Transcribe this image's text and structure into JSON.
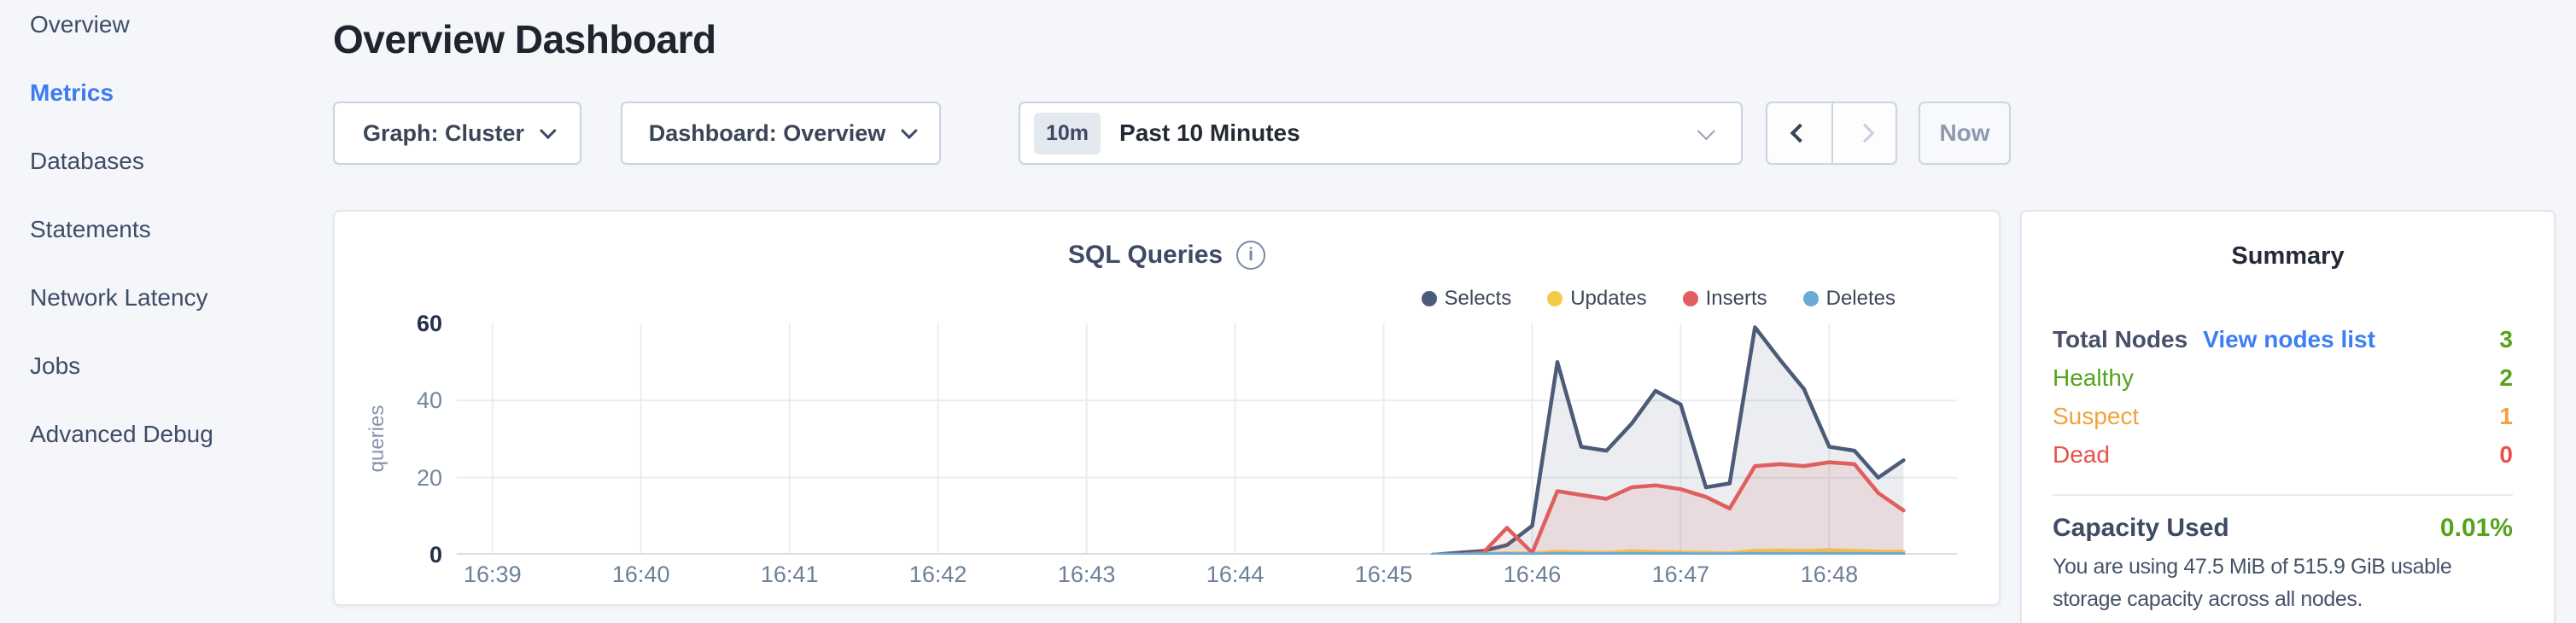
{
  "sidebar": {
    "items": [
      {
        "label": "Overview",
        "active": false
      },
      {
        "label": "Metrics",
        "active": true
      },
      {
        "label": "Databases",
        "active": false
      },
      {
        "label": "Statements",
        "active": false
      },
      {
        "label": "Network Latency",
        "active": false
      },
      {
        "label": "Jobs",
        "active": false
      },
      {
        "label": "Advanced Debug",
        "active": false
      }
    ]
  },
  "header": {
    "title": "Overview Dashboard"
  },
  "toolbar": {
    "graph_dropdown": {
      "label": "Graph: Cluster"
    },
    "dashboard_dropdown": {
      "label": "Dashboard: Overview"
    },
    "time_selector": {
      "badge": "10m",
      "label": "Past 10 Minutes"
    },
    "now_button": "Now"
  },
  "icons": {
    "info": "i"
  },
  "chart_data": {
    "type": "line",
    "title": "SQL Queries",
    "ylabel": "queries",
    "ylim": [
      0,
      60
    ],
    "y_ticks": [
      0,
      20,
      40,
      60
    ],
    "x_ticks": [
      "16:39",
      "16:40",
      "16:41",
      "16:42",
      "16:43",
      "16:44",
      "16:45",
      "16:46",
      "16:47",
      "16:48"
    ],
    "x_range_minutes": [
      -0.24,
      9.86
    ],
    "grid": {
      "h_values": [
        20,
        40
      ],
      "v_every_tick": true,
      "grid_color": "#e9edf3",
      "baseline_color": "#d8dee8"
    },
    "legend_position": "top-right",
    "series": [
      {
        "name": "Selects",
        "color": "#4c5b78",
        "fill": "rgba(76,91,120,0.11)",
        "points": [
          [
            6.33,
            0
          ],
          [
            6.5,
            0.5
          ],
          [
            6.67,
            1
          ],
          [
            6.83,
            2.5
          ],
          [
            7.0,
            7.5
          ],
          [
            7.17,
            50
          ],
          [
            7.33,
            28
          ],
          [
            7.5,
            27
          ],
          [
            7.67,
            34
          ],
          [
            7.83,
            42.5
          ],
          [
            8.0,
            39
          ],
          [
            8.17,
            17.5
          ],
          [
            8.33,
            18.5
          ],
          [
            8.5,
            59
          ],
          [
            8.67,
            50.5
          ],
          [
            8.83,
            43
          ],
          [
            9.0,
            28
          ],
          [
            9.17,
            27
          ],
          [
            9.33,
            20
          ],
          [
            9.5,
            24.5
          ]
        ]
      },
      {
        "name": "Updates",
        "color": "#f3cb4a",
        "fill": "rgba(243,203,74,0.10)",
        "points": [
          [
            6.33,
            0
          ],
          [
            6.5,
            0
          ],
          [
            6.67,
            0.2
          ],
          [
            6.83,
            0.4
          ],
          [
            7.0,
            0.3
          ],
          [
            7.17,
            0.8
          ],
          [
            7.33,
            0.6
          ],
          [
            7.5,
            0.5
          ],
          [
            7.67,
            0.9
          ],
          [
            7.83,
            0.7
          ],
          [
            8.0,
            0.6
          ],
          [
            8.17,
            0.5
          ],
          [
            8.33,
            0.4
          ],
          [
            8.5,
            1
          ],
          [
            8.67,
            1.1
          ],
          [
            8.83,
            1
          ],
          [
            9.0,
            1.2
          ],
          [
            9.17,
            1
          ],
          [
            9.33,
            0.8
          ],
          [
            9.5,
            0.8
          ]
        ]
      },
      {
        "name": "Inserts",
        "color": "#e05e5e",
        "fill": "rgba(224,94,94,0.12)",
        "points": [
          [
            6.33,
            0
          ],
          [
            6.5,
            0
          ],
          [
            6.67,
            0.5
          ],
          [
            6.83,
            7
          ],
          [
            7.0,
            0.5
          ],
          [
            7.17,
            16.5
          ],
          [
            7.33,
            15.5
          ],
          [
            7.5,
            14.5
          ],
          [
            7.67,
            17.5
          ],
          [
            7.83,
            18
          ],
          [
            8.0,
            17
          ],
          [
            8.17,
            15
          ],
          [
            8.33,
            12
          ],
          [
            8.5,
            23
          ],
          [
            8.67,
            23.5
          ],
          [
            8.83,
            23
          ],
          [
            9.0,
            24
          ],
          [
            9.17,
            23.5
          ],
          [
            9.33,
            16
          ],
          [
            9.5,
            11.5
          ]
        ]
      },
      {
        "name": "Deletes",
        "color": "#6aaad6",
        "fill": "rgba(106,170,214,0.08)",
        "points": [
          [
            6.33,
            0
          ],
          [
            6.5,
            0
          ],
          [
            6.67,
            0.1
          ],
          [
            6.83,
            0.15
          ],
          [
            7.0,
            0.1
          ],
          [
            7.17,
            0.2
          ],
          [
            7.33,
            0.15
          ],
          [
            7.5,
            0.15
          ],
          [
            7.67,
            0.2
          ],
          [
            7.83,
            0.15
          ],
          [
            8.0,
            0.15
          ],
          [
            8.17,
            0.1
          ],
          [
            8.33,
            0.1
          ],
          [
            8.5,
            0.2
          ],
          [
            8.67,
            0.2
          ],
          [
            8.83,
            0.2
          ],
          [
            9.0,
            0.2
          ],
          [
            9.17,
            0.2
          ],
          [
            9.33,
            0.15
          ],
          [
            9.5,
            0.15
          ]
        ]
      }
    ]
  },
  "summary": {
    "title": "Summary",
    "total_nodes": {
      "label": "Total Nodes",
      "link": "View nodes list",
      "value": "3"
    },
    "rows": [
      {
        "label": "Healthy",
        "value": "2",
        "color": "#55a31d"
      },
      {
        "label": "Suspect",
        "value": "1",
        "color": "#f2a33c"
      },
      {
        "label": "Dead",
        "value": "0",
        "color": "#e8504a"
      }
    ],
    "capacity": {
      "label": "Capacity Used",
      "value": "0.01%",
      "description": "You are using 47.5 MiB of 515.9 GiB usable storage capacity across all nodes."
    }
  },
  "colors": {
    "green": "#55a31d",
    "orange": "#f2a33c",
    "red": "#e8504a",
    "link_blue": "#3d7ef2",
    "active_blue": "#3b7cf0"
  }
}
